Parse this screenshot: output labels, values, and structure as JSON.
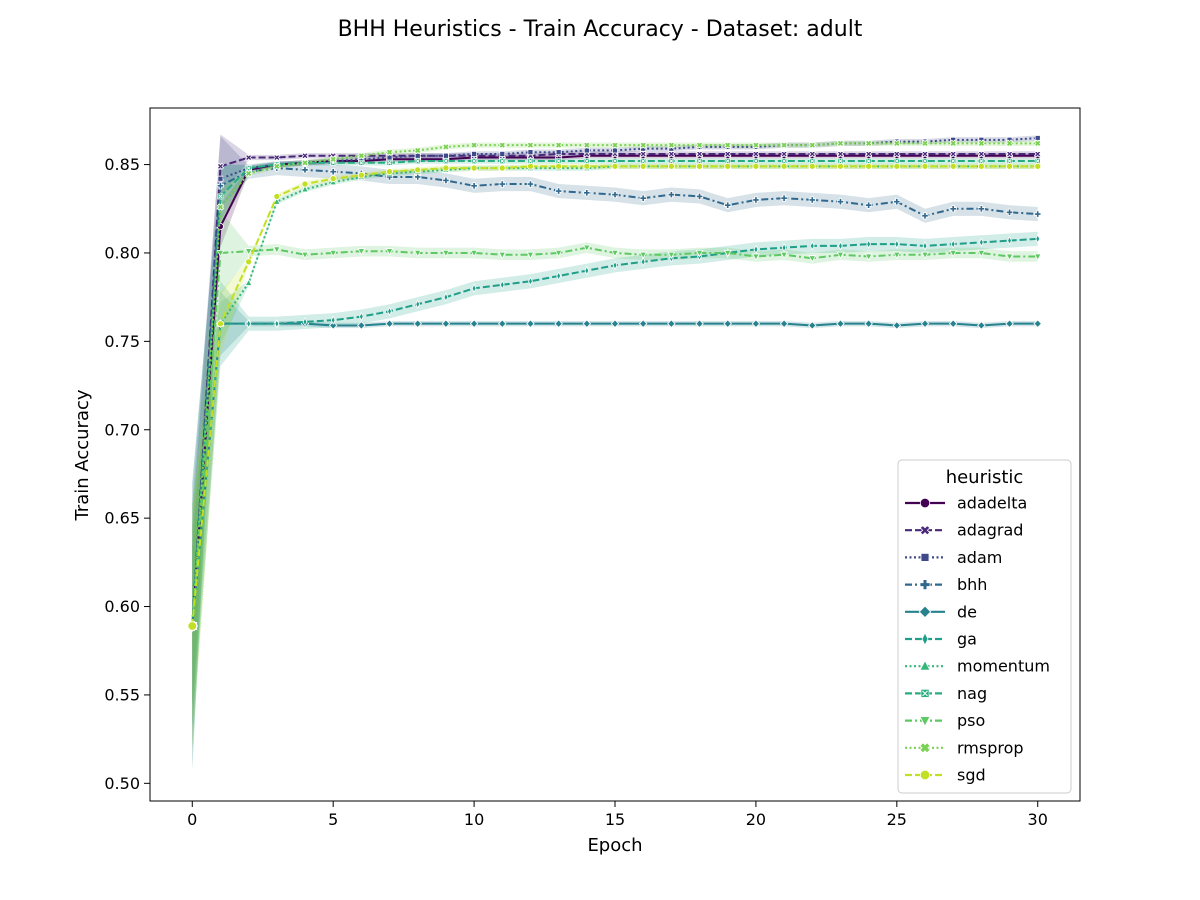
{
  "chart_data": {
    "type": "line",
    "title": "BHH Heuristics - Train Accuracy - Dataset: adult",
    "xlabel": "Epoch",
    "ylabel": "Train Accuracy",
    "xlim": [
      -1.5,
      31.5
    ],
    "ylim": [
      0.49,
      0.882
    ],
    "xticks": [
      0,
      5,
      10,
      15,
      20,
      25,
      30
    ],
    "yticks": [
      0.5,
      0.55,
      0.6,
      0.65,
      0.7,
      0.75,
      0.8,
      0.85
    ],
    "xtick_labels": [
      "0",
      "5",
      "10",
      "15",
      "20",
      "25",
      "30"
    ],
    "ytick_labels": [
      "0.50",
      "0.55",
      "0.60",
      "0.65",
      "0.70",
      "0.75",
      "0.80",
      "0.85"
    ],
    "grid": false,
    "legend": {
      "title": "heuristic",
      "placement": "lower-right"
    },
    "x": [
      0,
      1,
      2,
      3,
      4,
      5,
      6,
      7,
      8,
      9,
      10,
      11,
      12,
      13,
      14,
      15,
      16,
      17,
      18,
      19,
      20,
      21,
      22,
      23,
      24,
      25,
      26,
      27,
      28,
      29,
      30
    ],
    "series": [
      {
        "name": "adadelta",
        "color": "#440154",
        "dash": "solid",
        "marker": "circle",
        "values": [
          0.589,
          0.815,
          0.847,
          0.85,
          0.851,
          0.852,
          0.852,
          0.853,
          0.853,
          0.853,
          0.854,
          0.854,
          0.854,
          0.854,
          0.855,
          0.855,
          0.855,
          0.855,
          0.855,
          0.855,
          0.855,
          0.855,
          0.855,
          0.855,
          0.855,
          0.855,
          0.855,
          0.855,
          0.855,
          0.855,
          0.855
        ]
      },
      {
        "name": "adagrad",
        "color": "#482878",
        "dash": "dashed",
        "marker": "x",
        "values": [
          0.589,
          0.849,
          0.854,
          0.854,
          0.855,
          0.855,
          0.855,
          0.855,
          0.855,
          0.855,
          0.855,
          0.855,
          0.855,
          0.856,
          0.856,
          0.856,
          0.856,
          0.856,
          0.856,
          0.856,
          0.856,
          0.856,
          0.856,
          0.856,
          0.856,
          0.856,
          0.856,
          0.856,
          0.856,
          0.856,
          0.856
        ]
      },
      {
        "name": "adam",
        "color": "#3e4989",
        "dash": "dotted",
        "marker": "square",
        "values": [
          0.589,
          0.842,
          0.848,
          0.85,
          0.851,
          0.852,
          0.853,
          0.854,
          0.855,
          0.855,
          0.856,
          0.856,
          0.857,
          0.857,
          0.858,
          0.858,
          0.859,
          0.859,
          0.86,
          0.86,
          0.86,
          0.861,
          0.861,
          0.862,
          0.862,
          0.863,
          0.863,
          0.864,
          0.864,
          0.864,
          0.865
        ]
      },
      {
        "name": "bhh",
        "color": "#31688e",
        "dash": "dashdot",
        "marker": "plus",
        "band": 0.004,
        "values": [
          0.589,
          0.838,
          0.846,
          0.848,
          0.847,
          0.846,
          0.845,
          0.843,
          0.843,
          0.841,
          0.838,
          0.839,
          0.839,
          0.835,
          0.834,
          0.833,
          0.831,
          0.833,
          0.832,
          0.827,
          0.83,
          0.831,
          0.83,
          0.829,
          0.827,
          0.829,
          0.821,
          0.825,
          0.825,
          0.823,
          0.822
        ]
      },
      {
        "name": "de",
        "color": "#26828e",
        "dash": "solid",
        "marker": "diamond",
        "values": [
          0.589,
          0.76,
          0.76,
          0.76,
          0.76,
          0.759,
          0.759,
          0.76,
          0.76,
          0.76,
          0.76,
          0.76,
          0.76,
          0.76,
          0.76,
          0.76,
          0.76,
          0.76,
          0.76,
          0.76,
          0.76,
          0.76,
          0.759,
          0.76,
          0.76,
          0.759,
          0.76,
          0.76,
          0.759,
          0.76,
          0.76
        ]
      },
      {
        "name": "ga",
        "color": "#1f9e89",
        "dash": "dashed",
        "marker": "thin-diamond",
        "band": 0.004,
        "values": [
          0.589,
          0.76,
          0.76,
          0.76,
          0.761,
          0.762,
          0.764,
          0.767,
          0.771,
          0.775,
          0.78,
          0.782,
          0.784,
          0.787,
          0.79,
          0.793,
          0.795,
          0.797,
          0.798,
          0.8,
          0.802,
          0.803,
          0.804,
          0.804,
          0.805,
          0.805,
          0.804,
          0.805,
          0.806,
          0.807,
          0.808
        ]
      },
      {
        "name": "momentum",
        "color": "#35b779",
        "dash": "dotted",
        "marker": "triangle-up",
        "values": [
          0.589,
          0.76,
          0.783,
          0.829,
          0.836,
          0.84,
          0.843,
          0.845,
          0.846,
          0.847,
          0.848,
          0.848,
          0.848,
          0.848,
          0.848,
          0.849,
          0.849,
          0.849,
          0.849,
          0.849,
          0.849,
          0.849,
          0.849,
          0.849,
          0.849,
          0.849,
          0.849,
          0.849,
          0.849,
          0.849,
          0.849
        ]
      },
      {
        "name": "nag",
        "color": "#27ad81",
        "dash": "dashed",
        "marker": "square-x",
        "values": [
          0.589,
          0.832,
          0.848,
          0.85,
          0.851,
          0.851,
          0.851,
          0.851,
          0.852,
          0.852,
          0.852,
          0.852,
          0.852,
          0.852,
          0.852,
          0.852,
          0.852,
          0.852,
          0.852,
          0.852,
          0.852,
          0.852,
          0.852,
          0.852,
          0.852,
          0.852,
          0.852,
          0.852,
          0.852,
          0.852,
          0.852
        ]
      },
      {
        "name": "pso",
        "color": "#5ec962",
        "dash": "dashdot",
        "marker": "triangle-down",
        "band": 0.003,
        "values": [
          0.589,
          0.8,
          0.801,
          0.802,
          0.799,
          0.8,
          0.801,
          0.801,
          0.8,
          0.8,
          0.8,
          0.799,
          0.799,
          0.8,
          0.803,
          0.8,
          0.799,
          0.799,
          0.8,
          0.8,
          0.798,
          0.799,
          0.797,
          0.799,
          0.798,
          0.799,
          0.799,
          0.8,
          0.8,
          0.798,
          0.798
        ]
      },
      {
        "name": "rmsprop",
        "color": "#7ad151",
        "dash": "dotted",
        "marker": "x-fat",
        "values": [
          0.589,
          0.826,
          0.845,
          0.849,
          0.851,
          0.853,
          0.855,
          0.857,
          0.858,
          0.86,
          0.861,
          0.861,
          0.861,
          0.861,
          0.861,
          0.861,
          0.861,
          0.861,
          0.861,
          0.861,
          0.861,
          0.861,
          0.861,
          0.862,
          0.862,
          0.862,
          0.862,
          0.862,
          0.862,
          0.862,
          0.862
        ]
      },
      {
        "name": "sgd",
        "color": "#c2df23",
        "dash": "dashed",
        "marker": "octagon",
        "values": [
          0.589,
          0.76,
          0.795,
          0.832,
          0.839,
          0.842,
          0.844,
          0.846,
          0.847,
          0.848,
          0.848,
          0.848,
          0.849,
          0.849,
          0.849,
          0.849,
          0.849,
          0.849,
          0.849,
          0.849,
          0.849,
          0.849,
          0.849,
          0.849,
          0.849,
          0.849,
          0.849,
          0.849,
          0.849,
          0.849,
          0.849
        ]
      }
    ]
  }
}
